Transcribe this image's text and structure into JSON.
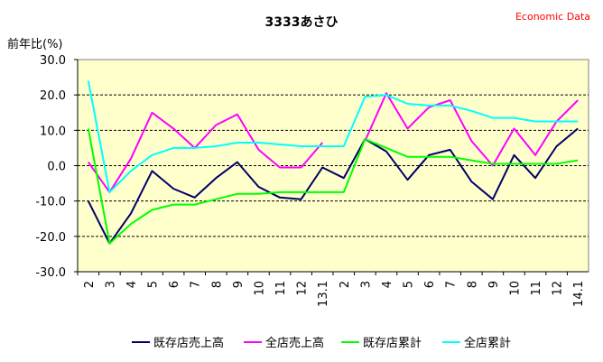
{
  "title": "3333あさひ",
  "watermark": "Economic Data",
  "chart_data": {
    "type": "line",
    "title": "3333あさひ",
    "ylabel": "前年比(%)",
    "xlabel": "",
    "ylim": [
      -30,
      30
    ],
    "yticks": [
      "30.0",
      "20.0",
      "10.0",
      "0.0",
      "-10.0",
      "-20.0",
      "-30.0"
    ],
    "ytick_values": [
      30,
      20,
      10,
      0,
      -10,
      -20,
      -30
    ],
    "categories": [
      "2",
      "3",
      "4",
      "5",
      "6",
      "7",
      "8",
      "9",
      "10",
      "11",
      "12",
      "13.1",
      "2",
      "3",
      "4",
      "5",
      "6",
      "7",
      "8",
      "9",
      "10",
      "11",
      "12",
      "14.1"
    ],
    "grid": "horizontal dashed",
    "plot_background": "#ffffcc",
    "legend_position": "bottom",
    "series": [
      {
        "name": "既存店売上高",
        "color": "#000066",
        "values": [
          -10,
          -22,
          -13.5,
          -1.5,
          -6.5,
          -9,
          -3.5,
          1,
          -6,
          -9,
          -9.5,
          -0.5,
          -3.5,
          7.5,
          4,
          -4,
          3,
          4.5,
          -4.5,
          -9.5,
          3,
          -3.5,
          5.5,
          10.5
        ]
      },
      {
        "name": "全店売上高",
        "color": "#ff00ff",
        "values": [
          1,
          -7.5,
          2,
          15,
          10.5,
          5,
          11.5,
          14.5,
          4.5,
          -0.5,
          -0.5,
          6.5,
          null,
          7,
          20.5,
          10.5,
          16.5,
          18.5,
          7,
          0,
          10.5,
          3,
          12.5,
          18.5
        ]
      },
      {
        "name": "既存店累計",
        "color": "#00ff00",
        "values": [
          10.5,
          -22,
          -16.5,
          -12.5,
          -11,
          -11,
          -9.5,
          -8,
          -8,
          -7.5,
          -7.5,
          -7.5,
          -7.5,
          7.5,
          5,
          2.5,
          2.5,
          2.5,
          1.5,
          0.5,
          0.5,
          0.5,
          0.5,
          1.5
        ]
      },
      {
        "name": "全店累計",
        "color": "#00ffff",
        "values": [
          24,
          -7.5,
          -1.5,
          3,
          5,
          5,
          5.5,
          6.5,
          6.5,
          6,
          5.5,
          5.5,
          5.5,
          19.5,
          20,
          17.5,
          17,
          17,
          15.5,
          13.5,
          13.5,
          12.5,
          12.5,
          12.5
        ]
      }
    ]
  }
}
